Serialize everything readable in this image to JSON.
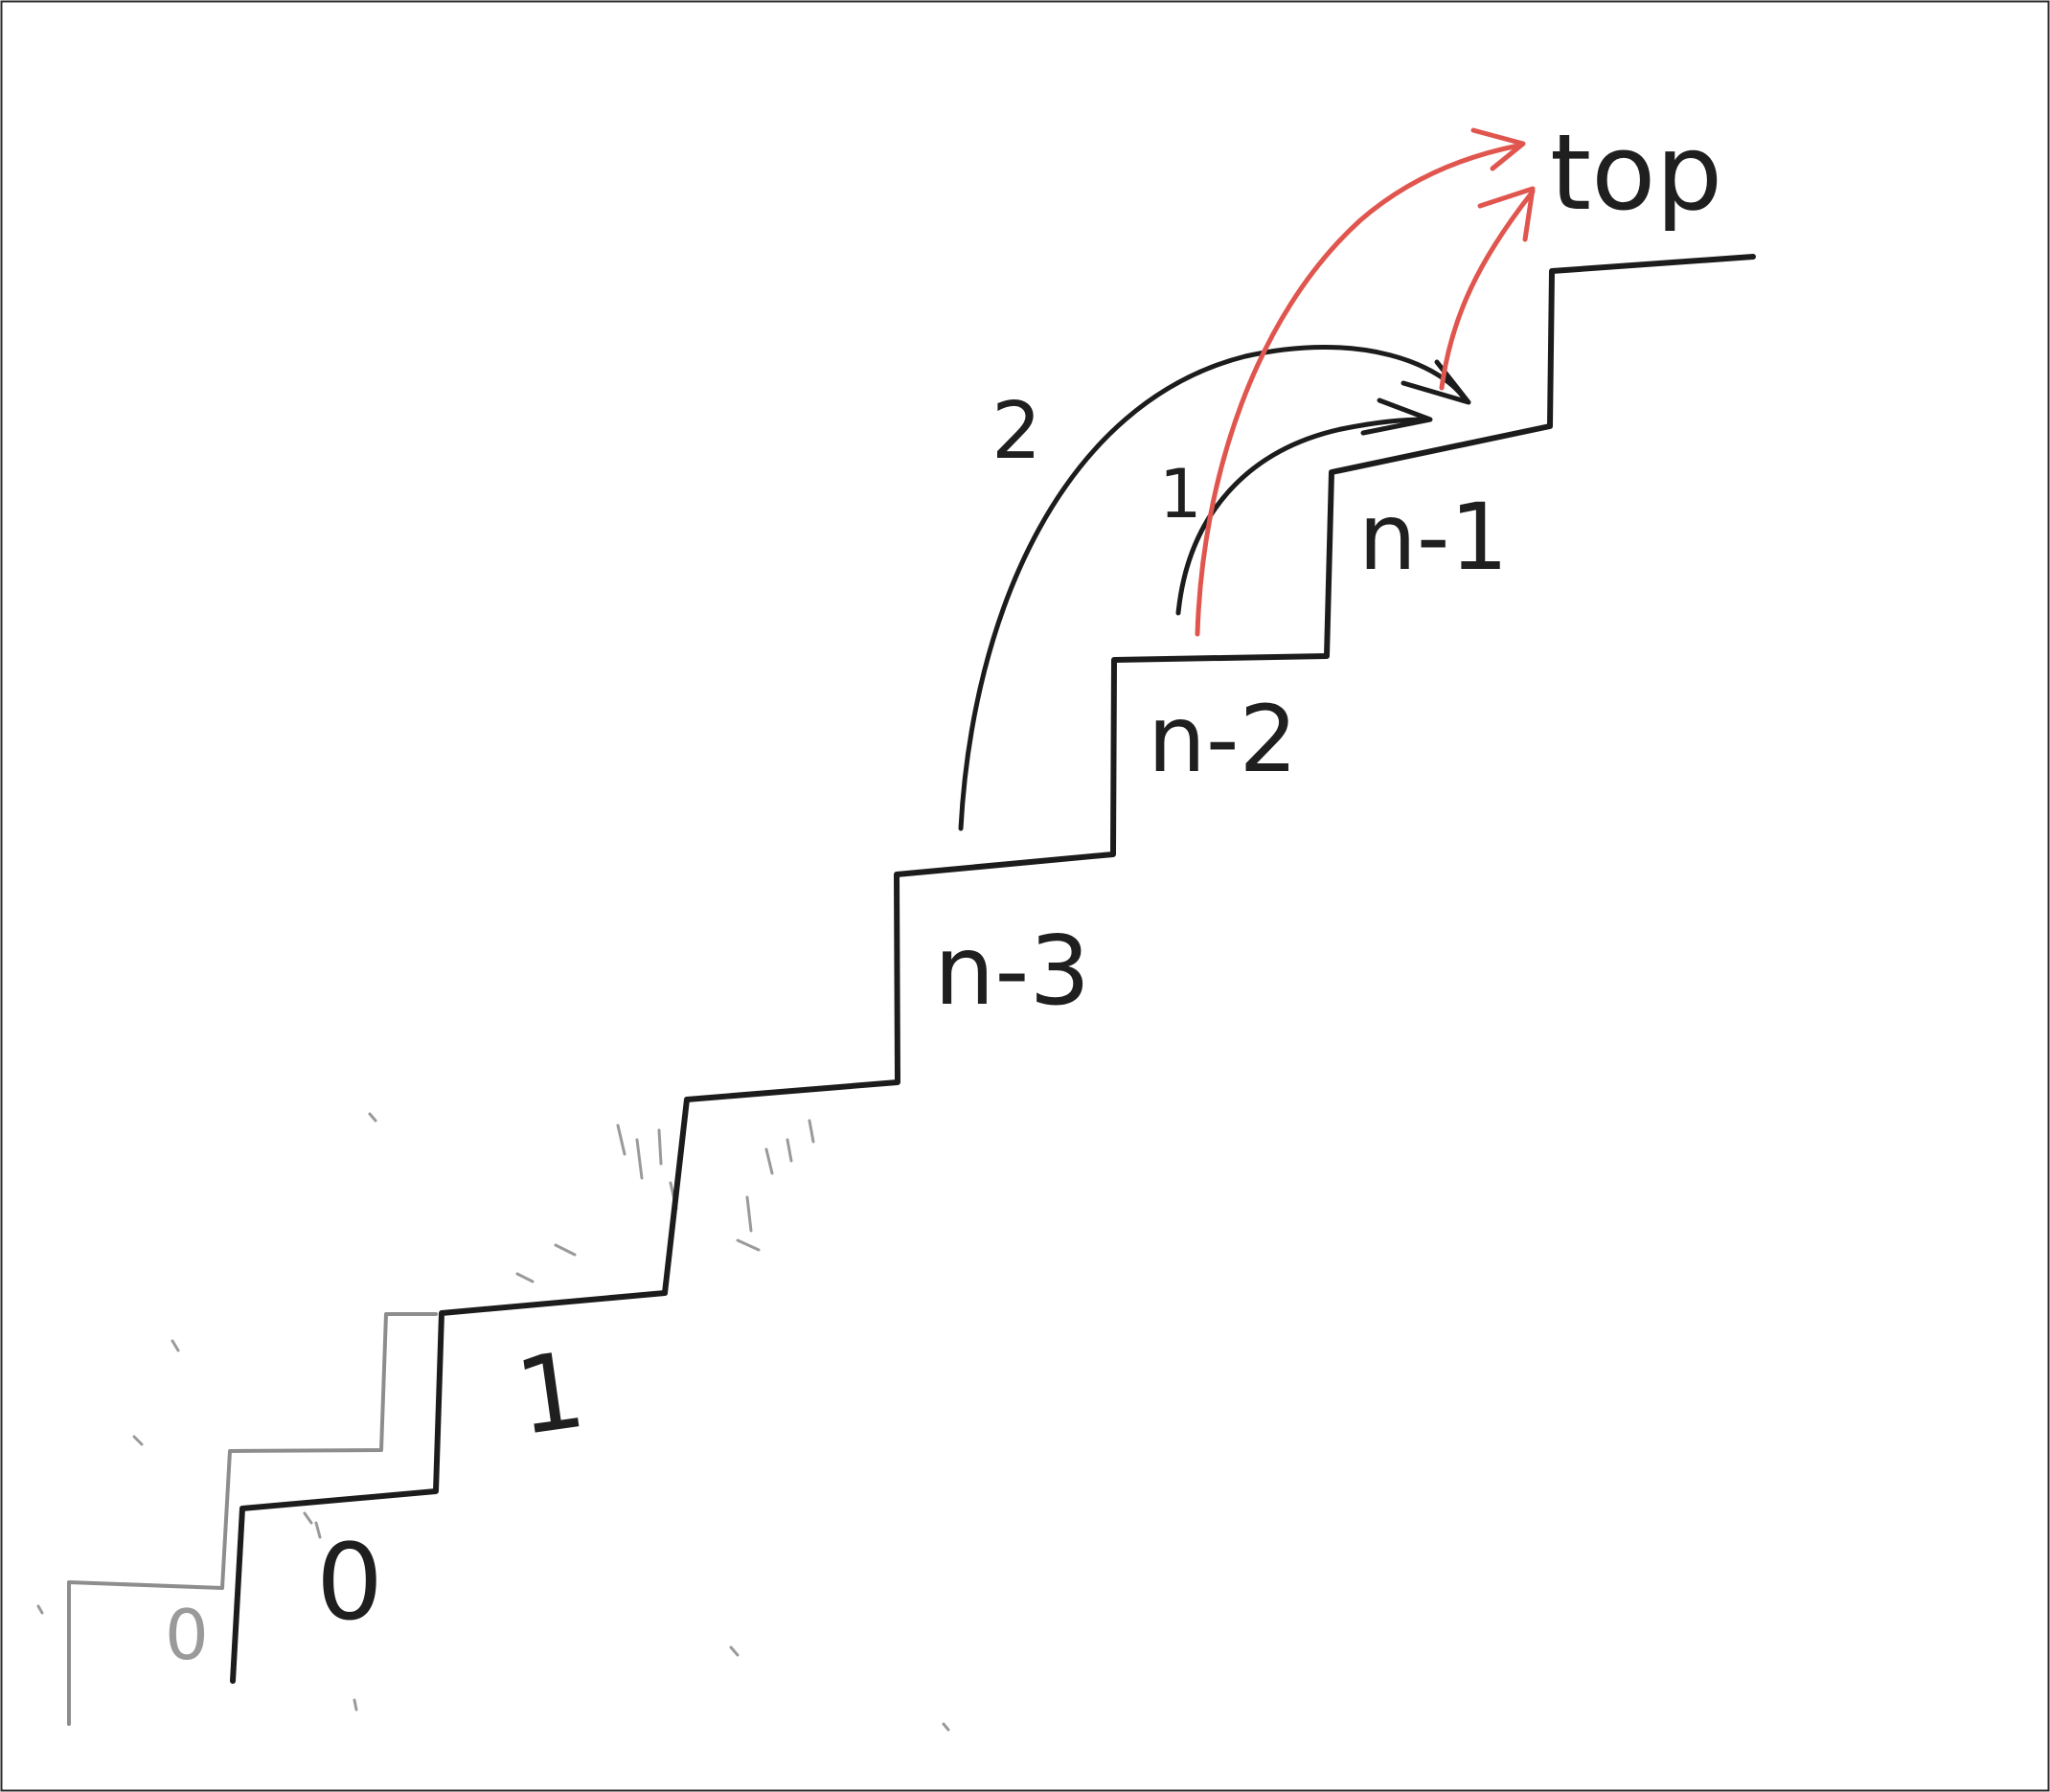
{
  "diagram": {
    "steps": {
      "ghost_zero": "0",
      "zero": "0",
      "one": "1",
      "n_minus_3": "n-3",
      "n_minus_2": "n-2",
      "n_minus_1": "n-1",
      "top": "top"
    },
    "jumps": {
      "two_step": "2",
      "one_step": "1"
    },
    "colors": {
      "ink": "#1c1c1c",
      "ghost": "#8d8d8d",
      "highlight": "#e0564f"
    }
  }
}
